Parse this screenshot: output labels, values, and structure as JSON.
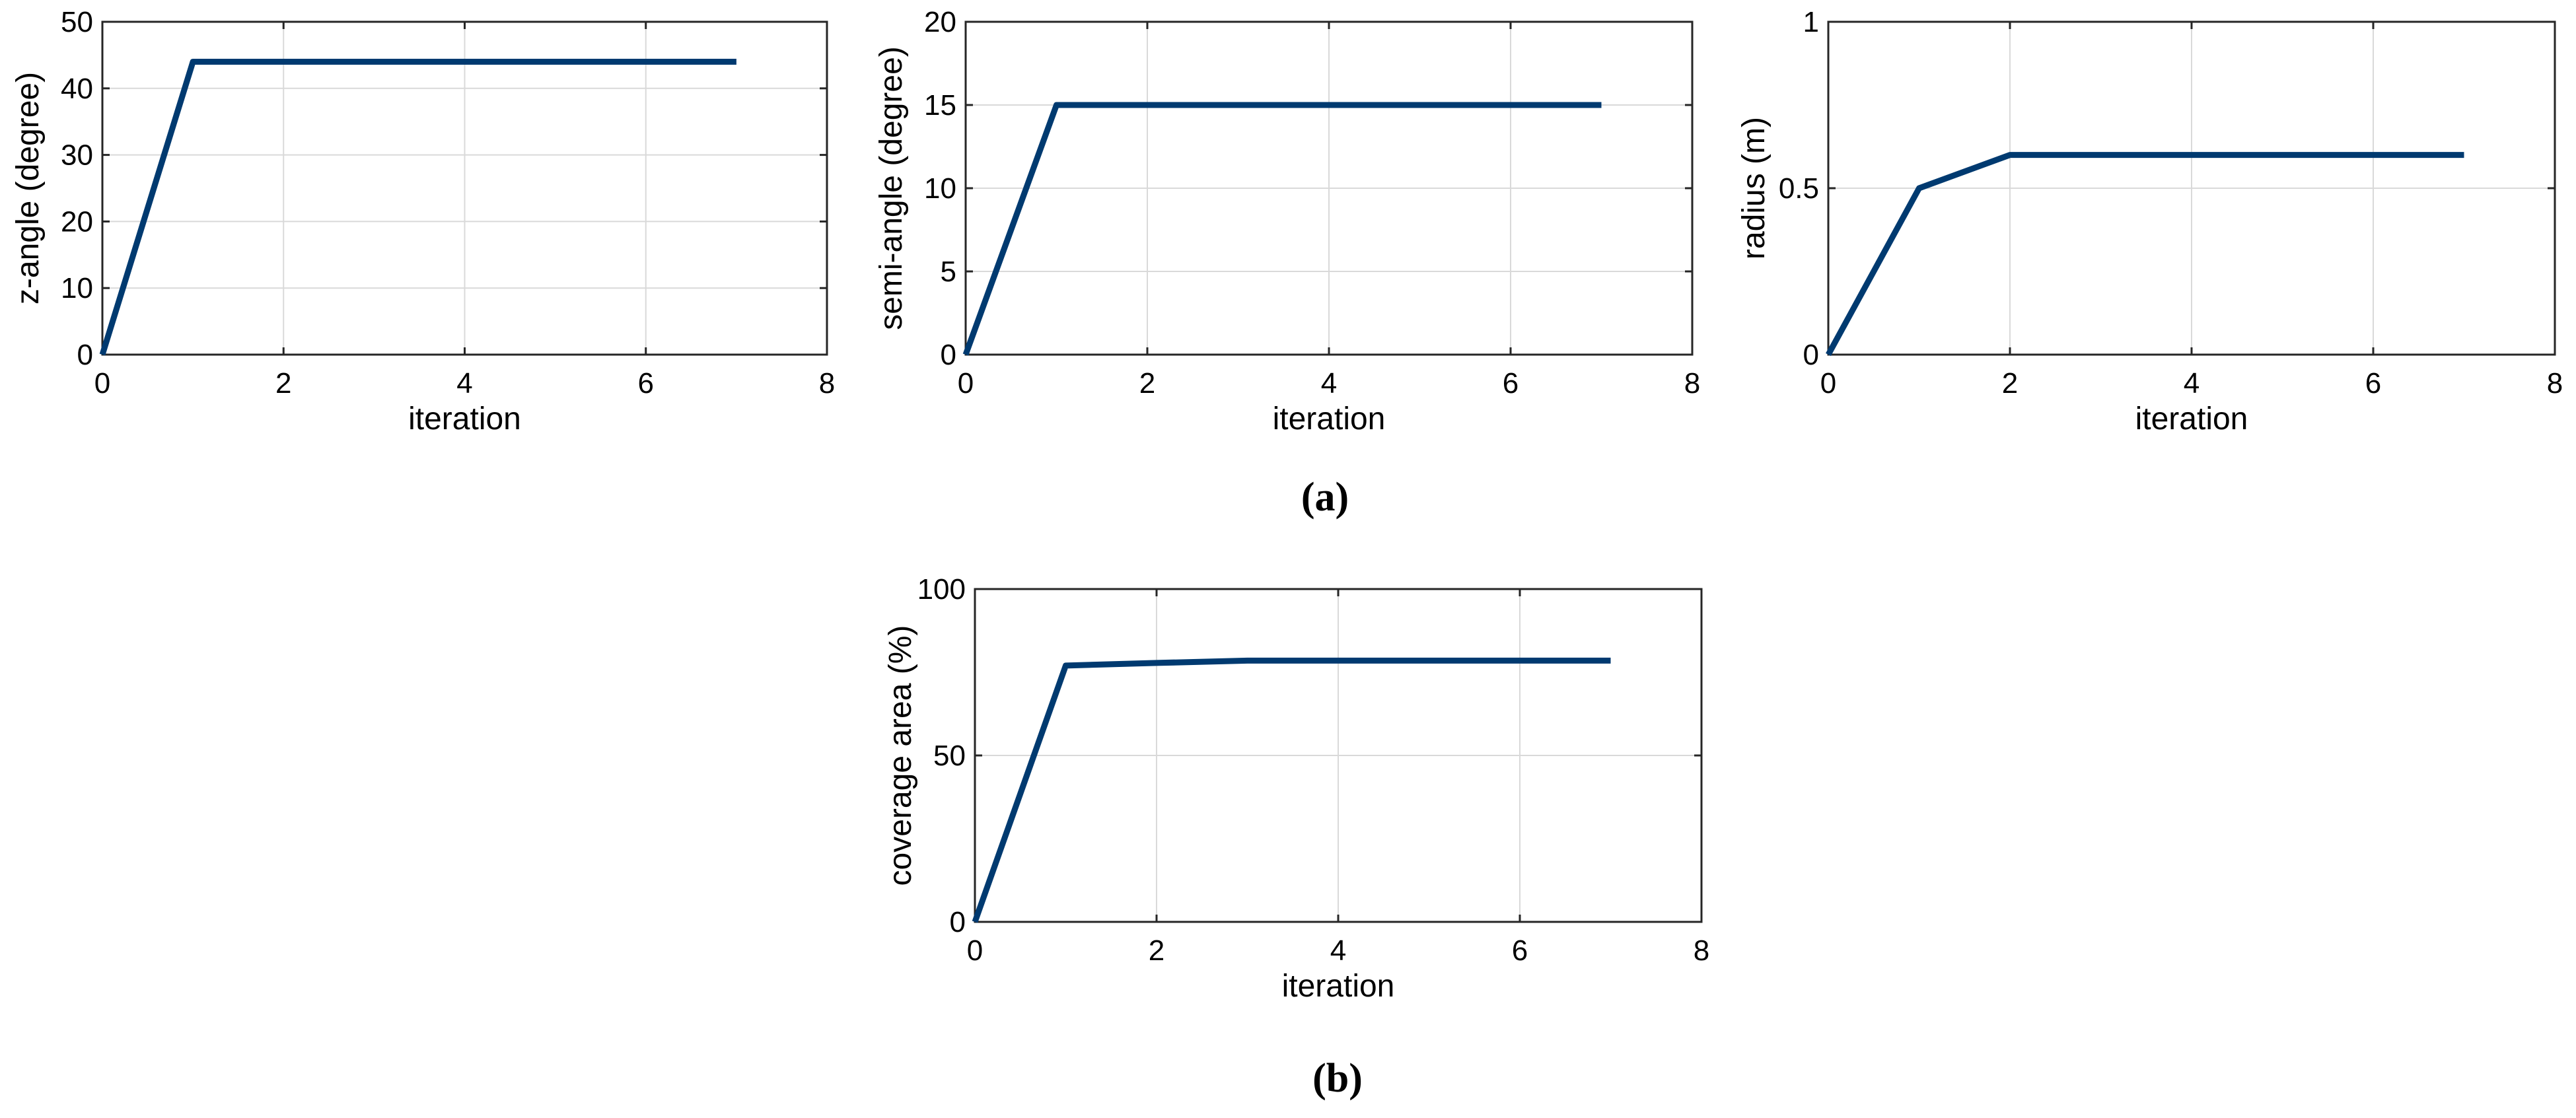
{
  "colors": {
    "line": "#003a70",
    "grid": "#d9d9d9",
    "axis": "#262626",
    "text": "#000000"
  },
  "figure_labels": {
    "a": "(a)",
    "b": "(b)"
  },
  "chart_data": [
    {
      "type": "line",
      "panel": "a",
      "title": "",
      "xlabel": "iteration",
      "ylabel": "z-angle (degree)",
      "xlim": [
        0,
        8
      ],
      "ylim": [
        0,
        50
      ],
      "xticks": [
        0,
        2,
        4,
        6,
        8
      ],
      "yticks": [
        0,
        10,
        20,
        30,
        40,
        50
      ],
      "xtick_labels": [
        "0",
        "2",
        "4",
        "6",
        "8"
      ],
      "ytick_labels": [
        "0",
        "10",
        "20",
        "30",
        "40",
        "50"
      ],
      "grid": true,
      "series": [
        {
          "name": "z-angle",
          "x": [
            0,
            1,
            2,
            3,
            4,
            5,
            6,
            7
          ],
          "values": [
            0,
            44,
            44,
            44,
            44,
            44,
            44,
            44
          ]
        }
      ]
    },
    {
      "type": "line",
      "panel": "a",
      "title": "",
      "xlabel": "iteration",
      "ylabel": "semi-angle (degree)",
      "xlim": [
        0,
        8
      ],
      "ylim": [
        0,
        20
      ],
      "xticks": [
        0,
        2,
        4,
        6,
        8
      ],
      "yticks": [
        0,
        5,
        10,
        15,
        20
      ],
      "xtick_labels": [
        "0",
        "2",
        "4",
        "6",
        "8"
      ],
      "ytick_labels": [
        "0",
        "5",
        "10",
        "15",
        "20"
      ],
      "grid": true,
      "series": [
        {
          "name": "semi-angle",
          "x": [
            0,
            1,
            2,
            3,
            4,
            5,
            6,
            7
          ],
          "values": [
            0,
            15,
            15,
            15,
            15,
            15,
            15,
            15
          ]
        }
      ]
    },
    {
      "type": "line",
      "panel": "a",
      "title": "",
      "xlabel": "iteration",
      "ylabel": "radius (m)",
      "xlim": [
        0,
        8
      ],
      "ylim": [
        0,
        1
      ],
      "xticks": [
        0,
        2,
        4,
        6,
        8
      ],
      "yticks": [
        0,
        0.5,
        1
      ],
      "xtick_labels": [
        "0",
        "2",
        "4",
        "6",
        "8"
      ],
      "ytick_labels": [
        "0",
        "0.5",
        "1"
      ],
      "grid": true,
      "series": [
        {
          "name": "radius",
          "x": [
            0,
            1,
            2,
            3,
            4,
            5,
            6,
            7
          ],
          "values": [
            0,
            0.5,
            0.6,
            0.6,
            0.6,
            0.6,
            0.6,
            0.6
          ]
        }
      ]
    },
    {
      "type": "line",
      "panel": "b",
      "title": "",
      "xlabel": "iteration",
      "ylabel": "coverage area (%)",
      "xlim": [
        0,
        8
      ],
      "ylim": [
        0,
        100
      ],
      "xticks": [
        0,
        2,
        4,
        6,
        8
      ],
      "yticks": [
        0,
        50,
        100
      ],
      "xtick_labels": [
        "0",
        "2",
        "4",
        "6",
        "8"
      ],
      "ytick_labels": [
        "0",
        "50",
        "100"
      ],
      "grid": true,
      "series": [
        {
          "name": "coverage area",
          "x": [
            0,
            1,
            2,
            3,
            4,
            5,
            6,
            7
          ],
          "values": [
            0,
            77,
            77.8,
            78.5,
            78.5,
            78.5,
            78.5,
            78.5
          ]
        }
      ]
    }
  ]
}
